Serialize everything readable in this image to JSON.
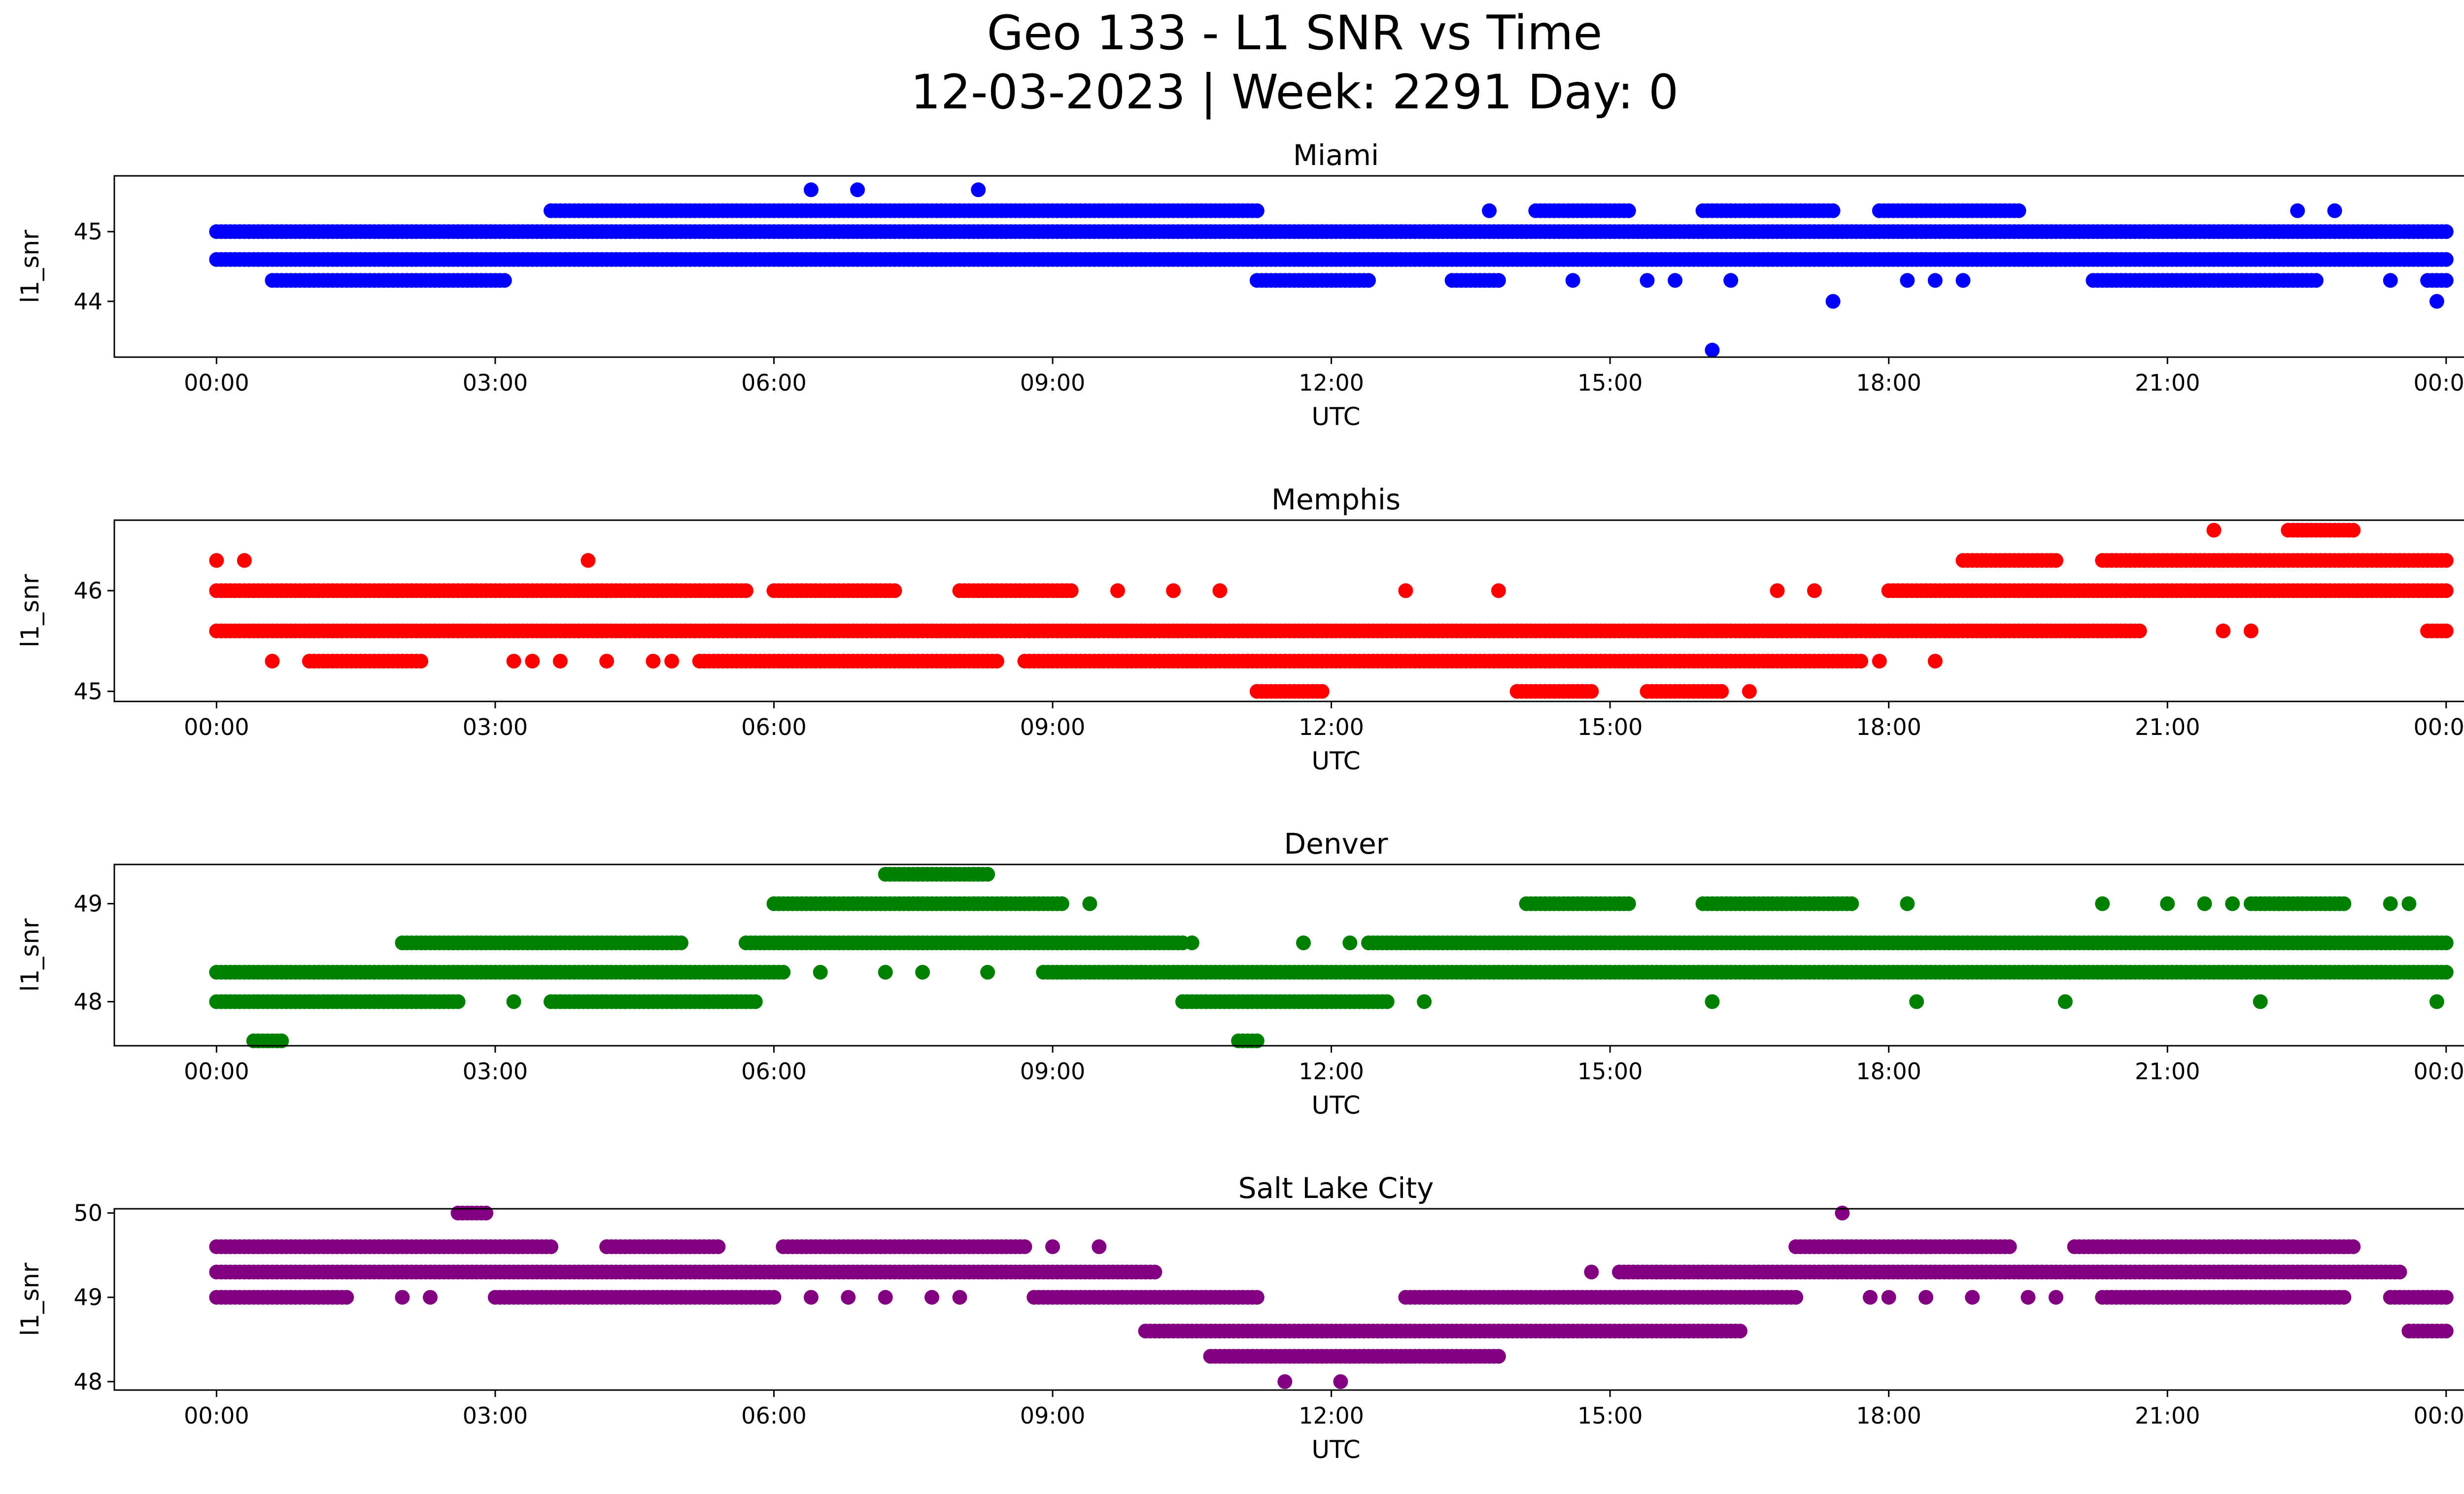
{
  "figure": {
    "title_line1": "Geo 133 - L1 SNR vs Time",
    "title_line2": "12-03-2023 | Week: 2291 Day: 0"
  },
  "chart_data": [
    {
      "type": "scatter",
      "title": "Miami",
      "xlabel": "UTC",
      "ylabel": "l1_snr",
      "color": "#0000ff",
      "x_ticks": [
        "00:00",
        "03:00",
        "06:00",
        "09:00",
        "12:00",
        "15:00",
        "18:00",
        "21:00",
        "00:00"
      ],
      "xlim_hours": [
        -1.1,
        25.2
      ],
      "ylim": [
        43.2,
        45.8
      ],
      "y_ticks": [
        44,
        45
      ],
      "series": [
        {
          "segments": [
            {
              "y": 45.0,
              "from": 0.0,
              "to": 24.0
            },
            {
              "y": 44.6,
              "from": 0.0,
              "to": 24.0
            },
            {
              "y": 44.3,
              "from": 0.6,
              "to": 3.1
            },
            {
              "y": 44.3,
              "from": 11.2,
              "to": 12.4
            },
            {
              "y": 44.3,
              "from": 13.3,
              "to": 13.8
            },
            {
              "y": 44.3,
              "from": 20.2,
              "to": 22.6
            },
            {
              "y": 44.3,
              "from": 23.8,
              "to": 24.0
            },
            {
              "y": 45.3,
              "from": 3.6,
              "to": 11.2
            },
            {
              "y": 45.3,
              "from": 14.2,
              "to": 15.2
            },
            {
              "y": 45.3,
              "from": 16.0,
              "to": 17.4
            },
            {
              "y": 45.3,
              "from": 17.9,
              "to": 19.4
            }
          ]
        },
        {
          "points": [
            [
              6.4,
              45.6
            ],
            [
              6.9,
              45.6
            ],
            [
              8.2,
              45.6
            ],
            [
              16.1,
              43.3
            ],
            [
              17.4,
              44.0
            ],
            [
              23.9,
              44.0
            ],
            [
              22.4,
              45.3
            ],
            [
              22.8,
              45.3
            ],
            [
              13.7,
              45.3
            ],
            [
              11.7,
              44.3
            ],
            [
              14.6,
              44.3
            ],
            [
              15.4,
              44.3
            ],
            [
              15.7,
              44.3
            ],
            [
              16.3,
              44.3
            ],
            [
              18.2,
              44.3
            ],
            [
              18.5,
              44.3
            ],
            [
              18.8,
              44.3
            ],
            [
              23.4,
              44.3
            ]
          ]
        }
      ]
    },
    {
      "type": "scatter",
      "title": "Memphis",
      "xlabel": "UTC",
      "ylabel": "l1_snr",
      "color": "#ff0000",
      "x_ticks": [
        "00:00",
        "03:00",
        "06:00",
        "09:00",
        "12:00",
        "15:00",
        "18:00",
        "21:00",
        "00:00"
      ],
      "xlim_hours": [
        -1.1,
        25.2
      ],
      "ylim": [
        44.9,
        46.7
      ],
      "y_ticks": [
        45,
        46
      ],
      "series": [
        {
          "segments": [
            {
              "y": 46.0,
              "from": 0.0,
              "to": 5.7
            },
            {
              "y": 46.0,
              "from": 6.0,
              "to": 7.3
            },
            {
              "y": 46.0,
              "from": 8.0,
              "to": 9.2
            },
            {
              "y": 46.0,
              "from": 18.0,
              "to": 24.0
            },
            {
              "y": 45.6,
              "from": 0.0,
              "to": 20.7
            },
            {
              "y": 45.6,
              "from": 23.8,
              "to": 24.0
            },
            {
              "y": 45.3,
              "from": 1.0,
              "to": 2.2
            },
            {
              "y": 45.3,
              "from": 5.2,
              "to": 8.4
            },
            {
              "y": 45.3,
              "from": 8.7,
              "to": 17.7
            },
            {
              "y": 46.3,
              "from": 18.8,
              "to": 19.8
            },
            {
              "y": 46.3,
              "from": 20.3,
              "to": 24.0
            },
            {
              "y": 46.6,
              "from": 22.3,
              "to": 23.0
            },
            {
              "y": 45.0,
              "from": 11.2,
              "to": 11.9
            },
            {
              "y": 45.0,
              "from": 14.0,
              "to": 14.8
            },
            {
              "y": 45.0,
              "from": 15.4,
              "to": 16.2
            }
          ]
        },
        {
          "points": [
            [
              0.0,
              46.3
            ],
            [
              0.3,
              46.3
            ],
            [
              4.0,
              46.3
            ],
            [
              0.6,
              45.3
            ],
            [
              3.2,
              45.3
            ],
            [
              3.4,
              45.3
            ],
            [
              3.7,
              45.3
            ],
            [
              4.2,
              45.3
            ],
            [
              4.7,
              45.3
            ],
            [
              4.9,
              45.3
            ],
            [
              17.9,
              45.3
            ],
            [
              18.5,
              45.3
            ],
            [
              21.5,
              46.6
            ],
            [
              21.6,
              45.6
            ],
            [
              21.9,
              45.6
            ],
            [
              12.8,
              46.0
            ],
            [
              13.8,
              46.0
            ],
            [
              16.8,
              46.0
            ],
            [
              17.2,
              46.0
            ],
            [
              9.7,
              46.0
            ],
            [
              10.3,
              46.0
            ],
            [
              10.8,
              46.0
            ],
            [
              16.5,
              45.0
            ]
          ]
        }
      ]
    },
    {
      "type": "scatter",
      "title": "Denver",
      "xlabel": "UTC",
      "ylabel": "l1_snr",
      "color": "#008000",
      "x_ticks": [
        "00:00",
        "03:00",
        "06:00",
        "09:00",
        "12:00",
        "15:00",
        "18:00",
        "21:00",
        "00:00"
      ],
      "xlim_hours": [
        -1.1,
        25.2
      ],
      "ylim": [
        47.55,
        49.4
      ],
      "y_ticks": [
        48,
        49
      ],
      "series": [
        {
          "segments": [
            {
              "y": 48.3,
              "from": 0.0,
              "to": 6.1
            },
            {
              "y": 48.3,
              "from": 8.9,
              "to": 24.0
            },
            {
              "y": 48.6,
              "from": 2.0,
              "to": 5.0
            },
            {
              "y": 48.6,
              "from": 5.7,
              "to": 10.4
            },
            {
              "y": 48.6,
              "from": 12.4,
              "to": 24.0
            },
            {
              "y": 48.0,
              "from": 0.0,
              "to": 2.6
            },
            {
              "y": 48.0,
              "from": 3.6,
              "to": 5.8
            },
            {
              "y": 48.0,
              "from": 10.4,
              "to": 12.6
            },
            {
              "y": 49.0,
              "from": 6.0,
              "to": 9.1
            },
            {
              "y": 49.0,
              "from": 14.1,
              "to": 15.2
            },
            {
              "y": 49.0,
              "from": 16.0,
              "to": 17.6
            },
            {
              "y": 49.0,
              "from": 21.9,
              "to": 22.9
            },
            {
              "y": 49.3,
              "from": 7.2,
              "to": 8.3
            },
            {
              "y": 47.6,
              "from": 0.4,
              "to": 0.7
            },
            {
              "y": 47.6,
              "from": 11.0,
              "to": 11.2
            }
          ]
        },
        {
          "points": [
            [
              6.5,
              48.3
            ],
            [
              7.2,
              48.3
            ],
            [
              7.6,
              48.3
            ],
            [
              8.3,
              48.3
            ],
            [
              10.5,
              48.6
            ],
            [
              11.7,
              48.6
            ],
            [
              12.2,
              48.6
            ],
            [
              4.9,
              48.6
            ],
            [
              9.4,
              49.0
            ],
            [
              18.2,
              49.0
            ],
            [
              20.3,
              49.0
            ],
            [
              21.0,
              49.0
            ],
            [
              21.4,
              49.0
            ],
            [
              21.7,
              49.0
            ],
            [
              23.4,
              49.0
            ],
            [
              23.6,
              49.0
            ],
            [
              13.0,
              48.0
            ],
            [
              16.1,
              48.0
            ],
            [
              18.3,
              48.0
            ],
            [
              19.9,
              48.0
            ],
            [
              22.0,
              48.0
            ],
            [
              23.9,
              48.0
            ],
            [
              3.2,
              48.0
            ]
          ]
        }
      ]
    },
    {
      "type": "scatter",
      "title": "Salt Lake City",
      "xlabel": "UTC",
      "ylabel": "l1_snr",
      "color": "#800080",
      "x_ticks": [
        "00:00",
        "03:00",
        "06:00",
        "09:00",
        "12:00",
        "15:00",
        "18:00",
        "21:00",
        "00:00"
      ],
      "xlim_hours": [
        -1.1,
        25.2
      ],
      "ylim": [
        47.9,
        50.05
      ],
      "y_ticks": [
        48,
        49,
        50
      ],
      "series": [
        {
          "segments": [
            {
              "y": 49.3,
              "from": 0.0,
              "to": 10.1
            },
            {
              "y": 49.3,
              "from": 15.1,
              "to": 23.5
            },
            {
              "y": 49.6,
              "from": 0.0,
              "to": 3.6
            },
            {
              "y": 49.6,
              "from": 4.2,
              "to": 5.4
            },
            {
              "y": 49.6,
              "from": 6.1,
              "to": 8.7
            },
            {
              "y": 49.6,
              "from": 17.0,
              "to": 19.3
            },
            {
              "y": 49.6,
              "from": 20.0,
              "to": 23.0
            },
            {
              "y": 49.0,
              "from": 0.0,
              "to": 1.4
            },
            {
              "y": 49.0,
              "from": 3.0,
              "to": 6.0
            },
            {
              "y": 49.0,
              "from": 8.8,
              "to": 11.2
            },
            {
              "y": 49.0,
              "from": 12.8,
              "to": 17.0
            },
            {
              "y": 49.0,
              "from": 20.3,
              "to": 22.9
            },
            {
              "y": 49.0,
              "from": 23.4,
              "to": 24.0
            },
            {
              "y": 48.6,
              "from": 10.0,
              "to": 16.4
            },
            {
              "y": 48.6,
              "from": 23.6,
              "to": 24.0
            },
            {
              "y": 48.3,
              "from": 10.7,
              "to": 13.8
            },
            {
              "y": 50.0,
              "from": 2.6,
              "to": 2.9
            }
          ]
        },
        {
          "points": [
            [
              17.5,
              50.0
            ],
            [
              11.5,
              48.0
            ],
            [
              12.1,
              48.0
            ],
            [
              14.8,
              49.3
            ],
            [
              15.5,
              49.3
            ],
            [
              15.8,
              49.3
            ],
            [
              16.2,
              49.3
            ],
            [
              6.4,
              49.0
            ],
            [
              6.8,
              49.0
            ],
            [
              7.2,
              49.0
            ],
            [
              7.7,
              49.0
            ],
            [
              8.0,
              49.0
            ],
            [
              2.0,
              49.0
            ],
            [
              2.3,
              49.0
            ],
            [
              17.8,
              49.0
            ],
            [
              18.4,
              49.0
            ],
            [
              18.9,
              49.0
            ],
            [
              19.5,
              49.0
            ],
            [
              19.8,
              49.0
            ],
            [
              9.0,
              49.6
            ],
            [
              9.5,
              49.6
            ],
            [
              18.0,
              49.0
            ]
          ]
        }
      ]
    }
  ]
}
